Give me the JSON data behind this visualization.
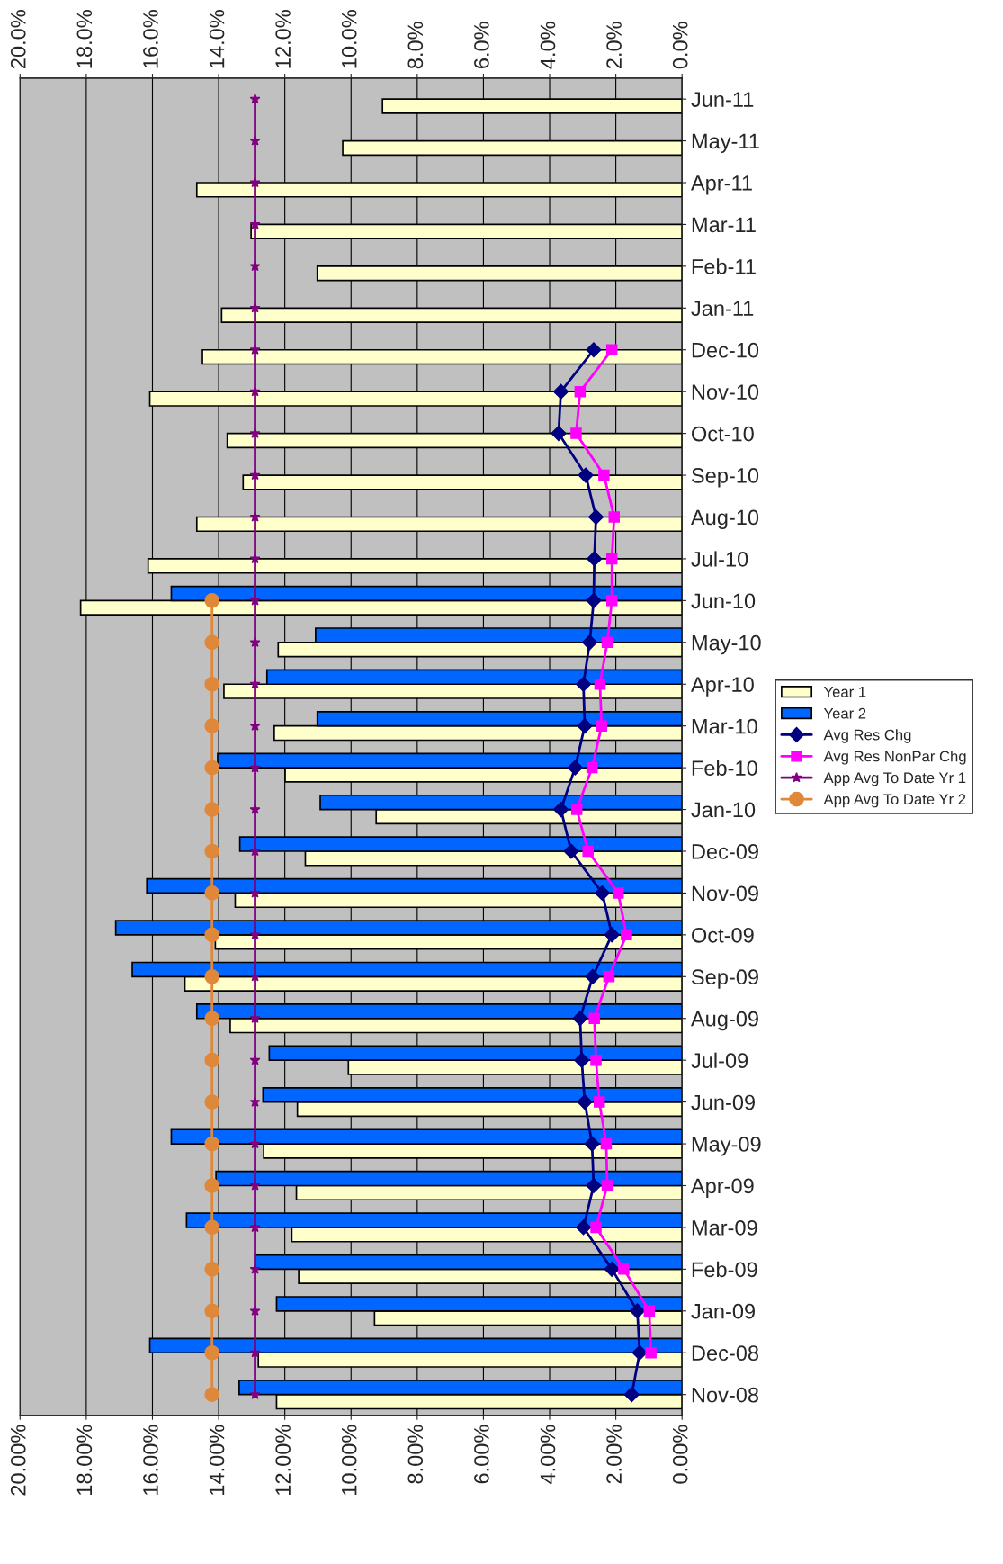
{
  "chart_data": {
    "type": "bar",
    "orientation": "horizontal",
    "categories": [
      "Jun-11",
      "May-11",
      "Apr-11",
      "Mar-11",
      "Feb-11",
      "Jan-11",
      "Dec-10",
      "Nov-10",
      "Oct-10",
      "Sep-10",
      "Aug-10",
      "Jul-10",
      "Jun-10",
      "May-10",
      "Apr-10",
      "Mar-10",
      "Feb-10",
      "Jan-10",
      "Dec-09",
      "Nov-09",
      "Oct-09",
      "Sep-09",
      "Aug-09",
      "Jul-09",
      "Jun-09",
      "May-09",
      "Apr-09",
      "Mar-09",
      "Feb-09",
      "Jan-09",
      "Dec-08",
      "Nov-08"
    ],
    "series": [
      {
        "name": "Year 1",
        "color": "#ffffcc",
        "values": [
          9.05,
          10.25,
          14.66,
          13.02,
          11.02,
          13.91,
          14.49,
          16.08,
          13.74,
          13.26,
          14.66,
          16.13,
          18.17,
          12.2,
          13.84,
          12.32,
          11.99,
          9.24,
          11.38,
          13.5,
          14.1,
          15.02,
          13.65,
          10.08,
          11.62,
          12.64,
          11.65,
          11.79,
          11.58,
          9.29,
          12.8,
          12.25
        ]
      },
      {
        "name": "Year 2",
        "color": "#0066ff",
        "values": [
          null,
          null,
          null,
          null,
          null,
          null,
          null,
          null,
          null,
          null,
          null,
          null,
          15.43,
          11.07,
          12.54,
          11.02,
          14.03,
          10.93,
          13.36,
          16.17,
          17.11,
          16.61,
          14.66,
          12.47,
          12.66,
          15.43,
          14.08,
          14.97,
          12.9,
          12.25,
          16.08,
          13.38
        ]
      },
      {
        "name": "Avg Res Chg",
        "type": "line",
        "marker": "diamond",
        "color": "#000080",
        "values": [
          null,
          null,
          null,
          null,
          null,
          null,
          2.67,
          3.66,
          3.73,
          2.91,
          2.6,
          2.65,
          2.67,
          2.79,
          2.98,
          2.94,
          3.23,
          3.66,
          3.35,
          2.41,
          2.12,
          2.7,
          3.08,
          3.03,
          2.94,
          2.72,
          2.67,
          2.98,
          2.12,
          1.35,
          1.28,
          1.52
        ]
      },
      {
        "name": "Avg Res NonPar Chg",
        "type": "line",
        "marker": "square",
        "color": "#ff00ff",
        "values": [
          null,
          null,
          null,
          null,
          null,
          null,
          2.12,
          3.08,
          3.2,
          2.36,
          2.05,
          2.12,
          2.12,
          2.26,
          2.48,
          2.43,
          2.72,
          3.18,
          2.84,
          1.93,
          1.68,
          2.21,
          2.65,
          2.6,
          2.5,
          2.29,
          2.26,
          2.6,
          1.76,
          0.99,
          0.94,
          null
        ]
      },
      {
        "name": "App Avg To Date Yr 1",
        "type": "line",
        "marker": "star",
        "color": "#800080",
        "values": [
          12.9,
          12.9,
          12.9,
          12.9,
          12.9,
          12.9,
          12.9,
          12.9,
          12.9,
          12.9,
          12.9,
          12.9,
          12.9,
          12.9,
          12.9,
          12.9,
          12.9,
          12.9,
          12.9,
          12.9,
          12.9,
          12.9,
          12.9,
          12.9,
          12.9,
          12.9,
          12.9,
          12.9,
          12.9,
          12.9,
          12.9,
          12.9
        ]
      },
      {
        "name": "App Avg To Date Yr 2",
        "type": "line",
        "marker": "circle",
        "color": "#e0883a",
        "values": [
          null,
          null,
          null,
          null,
          null,
          null,
          null,
          null,
          null,
          null,
          null,
          null,
          14.2,
          14.2,
          14.2,
          14.2,
          14.2,
          14.2,
          14.2,
          14.2,
          14.2,
          14.2,
          14.2,
          14.2,
          14.2,
          14.2,
          14.2,
          14.2,
          14.2,
          14.2,
          14.2,
          14.2
        ]
      }
    ],
    "xlim": [
      20,
      0
    ],
    "xticks": [
      {
        "value": 0,
        "label": "0.00%"
      },
      {
        "value": 2,
        "label": "2.00%"
      },
      {
        "value": 4,
        "label": "4.00%"
      },
      {
        "value": 6,
        "label": "6.00%"
      },
      {
        "value": 8,
        "label": "8.00%"
      },
      {
        "value": 10,
        "label": "10.00%"
      },
      {
        "value": 12,
        "label": "12.00%"
      },
      {
        "value": 14,
        "label": "14.00%"
      },
      {
        "value": 16,
        "label": "16.00%"
      },
      {
        "value": 18,
        "label": "18.00%"
      },
      {
        "value": 20,
        "label": "20.00%"
      }
    ],
    "x2lim": [
      20,
      0
    ],
    "x2ticks": [
      {
        "value": 0,
        "label": "0.0%"
      },
      {
        "value": 2,
        "label": "2.0%"
      },
      {
        "value": 4,
        "label": "4.0%"
      },
      {
        "value": 6,
        "label": "6.0%"
      },
      {
        "value": 8,
        "label": "8.0%"
      },
      {
        "value": 10,
        "label": "10.0%"
      },
      {
        "value": 12,
        "label": "12.0%"
      },
      {
        "value": 14,
        "label": "14.0%"
      },
      {
        "value": 16,
        "label": "16.0%"
      },
      {
        "value": 18,
        "label": "18.0%"
      },
      {
        "value": 20,
        "label": "20.0%"
      }
    ],
    "grid": "x",
    "legend": "right"
  }
}
